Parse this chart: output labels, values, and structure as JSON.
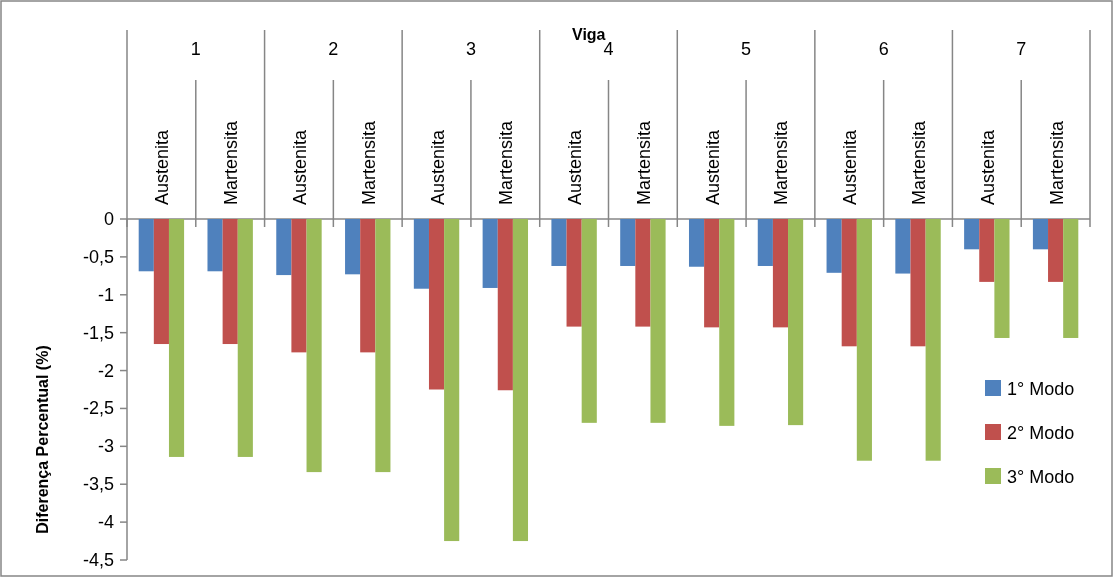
{
  "chart_data": {
    "type": "bar",
    "xlabel": "Viga",
    "ylabel": "Diferença Percentual (%)",
    "categories": [
      "Austenita",
      "Martensita",
      "Austenita",
      "Martensita",
      "Austenita",
      "Martensita",
      "Austenita",
      "Martensita",
      "Austenita",
      "Martensita",
      "Austenita",
      "Martensita",
      "Austenita",
      "Martensita"
    ],
    "annotations": [
      "1",
      "2",
      "3",
      "4",
      "5",
      "6",
      "7"
    ],
    "series": [
      {
        "name": "1° Modo",
        "color": "#4f81bd",
        "values": [
          -0.69,
          -0.69,
          -0.74,
          -0.73,
          -0.92,
          -0.91,
          -0.62,
          -0.62,
          -0.63,
          -0.62,
          -0.71,
          -0.72,
          -0.4,
          -0.4
        ]
      },
      {
        "name": "2° Modo",
        "color": "#c0504d",
        "values": [
          -1.65,
          -1.65,
          -1.76,
          -1.76,
          -2.25,
          -2.26,
          -1.42,
          -1.42,
          -1.43,
          -1.43,
          -1.68,
          -1.68,
          -0.83,
          -0.83
        ]
      },
      {
        "name": "3° Modo",
        "color": "#9bbb59",
        "values": [
          -3.14,
          -3.14,
          -3.34,
          -3.34,
          -4.25,
          -4.25,
          -2.69,
          -2.69,
          -2.73,
          -2.72,
          -3.19,
          -3.19,
          -1.57,
          -1.57
        ]
      }
    ],
    "ylim": [
      -4.5,
      0
    ],
    "yticks": [
      0,
      {
        "value": -0.5,
        "label": "-0,5"
      },
      -1,
      {
        "value": -1.5,
        "label": "-1,5"
      },
      -2,
      {
        "value": -2.5,
        "label": "-2,5"
      },
      -3,
      {
        "value": -3.5,
        "label": "-3,5"
      },
      -4,
      {
        "value": -4.5,
        "label": "-4,5"
      }
    ],
    "legend": "right"
  }
}
